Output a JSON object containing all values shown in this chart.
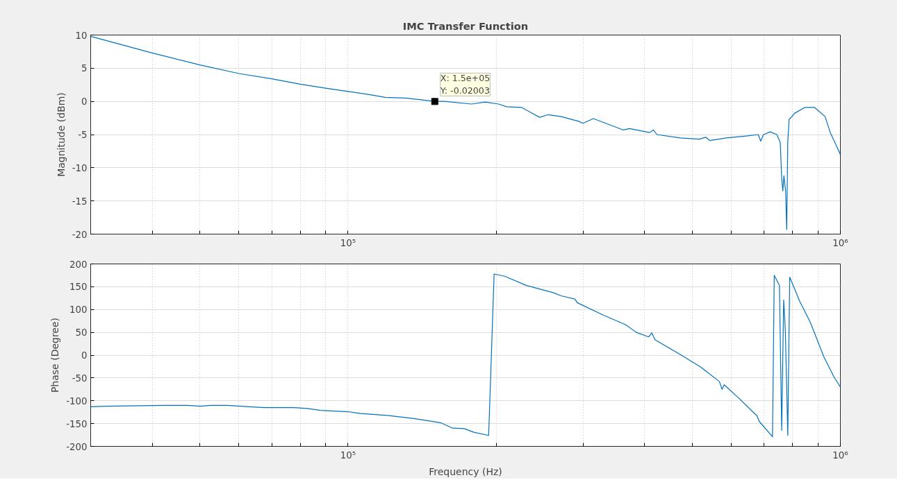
{
  "chart_data": [
    {
      "type": "line",
      "title": "IMC Transfer Function",
      "ylabel": "Magnitude (dBm)",
      "log": "x",
      "grid": true,
      "xlim": [
        30000,
        1000000
      ],
      "ylim": [
        -20,
        10
      ],
      "yticks": [
        -20,
        -15,
        -10,
        -5,
        0,
        5,
        10
      ],
      "xticks": [
        {
          "value": 40000,
          "label": null
        },
        {
          "value": 50000,
          "label": null
        },
        {
          "value": 60000,
          "label": null
        },
        {
          "value": 70000,
          "label": null
        },
        {
          "value": 80000,
          "label": null
        },
        {
          "value": 90000,
          "label": null
        },
        {
          "value": 100000,
          "label": "10⁵"
        },
        {
          "value": 200000,
          "label": null
        },
        {
          "value": 300000,
          "label": null
        },
        {
          "value": 400000,
          "label": null
        },
        {
          "value": 500000,
          "label": null
        },
        {
          "value": 600000,
          "label": null
        },
        {
          "value": 700000,
          "label": null
        },
        {
          "value": 800000,
          "label": null
        },
        {
          "value": 900000,
          "label": null
        },
        {
          "value": 1000000,
          "label": "10⁶"
        }
      ],
      "annotations": [
        {
          "text": "X: 1.5e+05\nY: -0.02003",
          "x": 150000,
          "y": -0.02003
        }
      ],
      "series": [
        {
          "color": "#0072bd",
          "x": [
            30000,
            40000,
            50000,
            60000,
            70000,
            80000,
            90000,
            100000,
            111000,
            119000,
            131000,
            150000,
            157000,
            178000,
            190000,
            202000,
            210000,
            225000,
            245000,
            255000,
            271000,
            294000,
            300000,
            315000,
            362000,
            373000,
            410000,
            417000,
            424000,
            473000,
            517000,
            533000,
            543000,
            586000,
            648000,
            681000,
            689000,
            698000,
            720000,
            743000,
            755000,
            760000,
            764000,
            768000,
            774000,
            778000,
            782000,
            787000,
            797000,
            807000,
            848000,
            886000,
            931000,
            955000,
            979000,
            1000000
          ],
          "values": [
            9.8,
            7.3,
            5.5,
            4.2,
            3.4,
            2.6,
            2.0,
            1.5,
            1.0,
            0.6,
            0.5,
            0.0,
            0.0,
            -0.4,
            -0.1,
            -0.4,
            -0.8,
            -0.9,
            -2.4,
            -2.0,
            -2.3,
            -3.0,
            -3.3,
            -2.6,
            -4.3,
            -4.1,
            -4.7,
            -4.3,
            -5.0,
            -5.5,
            -5.7,
            -5.4,
            -5.9,
            -5.5,
            -5.2,
            -5.0,
            -6.0,
            -5.0,
            -4.6,
            -5.0,
            -6.2,
            -11.6,
            -13.5,
            -11.2,
            -13.5,
            -19.3,
            -6.0,
            -2.7,
            -2.3,
            -1.8,
            -0.9,
            -0.9,
            -2.3,
            -4.8,
            -6.5,
            -8.0
          ]
        }
      ]
    },
    {
      "type": "line",
      "ylabel": "Phase (Degree)",
      "xlabel": "Frequency (Hz)",
      "log": "x",
      "grid": true,
      "xlim": [
        30000,
        1000000
      ],
      "ylim": [
        -200,
        200
      ],
      "yticks": [
        -200,
        -150,
        -100,
        -50,
        0,
        50,
        100,
        150,
        200
      ],
      "xticks": [
        {
          "value": 40000,
          "label": null
        },
        {
          "value": 50000,
          "label": null
        },
        {
          "value": 60000,
          "label": null
        },
        {
          "value": 70000,
          "label": null
        },
        {
          "value": 80000,
          "label": null
        },
        {
          "value": 90000,
          "label": null
        },
        {
          "value": 100000,
          "label": "10⁵"
        },
        {
          "value": 200000,
          "label": null
        },
        {
          "value": 300000,
          "label": null
        },
        {
          "value": 400000,
          "label": null
        },
        {
          "value": 500000,
          "label": null
        },
        {
          "value": 600000,
          "label": null
        },
        {
          "value": 700000,
          "label": null
        },
        {
          "value": 800000,
          "label": null
        },
        {
          "value": 900000,
          "label": null
        },
        {
          "value": 1000000,
          "label": "10⁶"
        }
      ],
      "series": [
        {
          "color": "#0072bd",
          "x": [
            30000,
            32400,
            42400,
            47100,
            50100,
            52700,
            56800,
            62800,
            67600,
            77600,
            82600,
            87900,
            100000,
            106000,
            120000,
            136000,
            154000,
            163000,
            172000,
            180000,
            193000,
            198000,
            208000,
            230000,
            239000,
            261000,
            271000,
            289000,
            292000,
            331000,
            366000,
            385000,
            408000,
            414000,
            420000,
            470000,
            520000,
            568000,
            575000,
            581000,
            620000,
            677000,
            685000,
            728000,
            734000,
            752000,
            760000,
            767000,
            773000,
            782000,
            789000,
            827000,
            869000,
            925000,
            972000,
            1000000
          ],
          "values": [
            -113,
            -112,
            -110,
            -110,
            -112,
            -110,
            -110,
            -113,
            -115,
            -115,
            -117,
            -121,
            -124,
            -128,
            -132,
            -139,
            -148,
            -160,
            -161,
            -169,
            -176,
            178,
            173,
            153,
            148,
            137,
            130,
            123,
            115,
            87,
            67,
            50,
            40,
            49,
            34,
            3,
            -26,
            -58,
            -75,
            -65,
            -93,
            -133,
            -146,
            -179,
            175,
            153,
            -165,
            121,
            55,
            -176,
            171,
            118,
            72,
            -3,
            -49,
            -70
          ]
        }
      ]
    }
  ]
}
